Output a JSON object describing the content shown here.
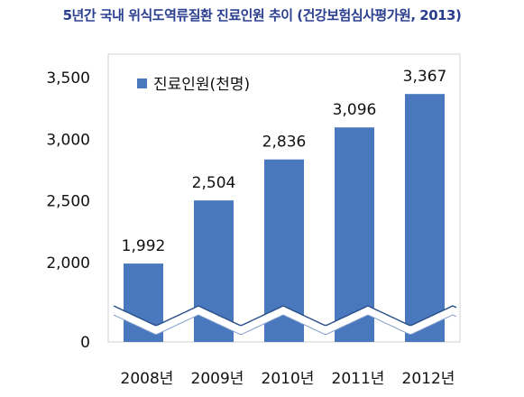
{
  "chart_data": {
    "type": "bar",
    "title": "5년간 국내 위식도역류질환 진료인원 추이 (건강보험심사평가원, 2013)",
    "categories": [
      "2008년",
      "2009년",
      "2010년",
      "2011년",
      "2012년"
    ],
    "series": [
      {
        "name": "진료인원(천명)",
        "values": [
          1992,
          2504,
          2836,
          3096,
          3367
        ],
        "color": "#4a78bf"
      }
    ],
    "data_labels": [
      "1,992",
      "2,504",
      "2,836",
      "3,096",
      "3,367"
    ],
    "yticks": [
      {
        "value": 0,
        "label": "0"
      },
      {
        "value": 2000,
        "label": "2,000"
      },
      {
        "value": 2500,
        "label": "2,500"
      },
      {
        "value": 3000,
        "label": "3,000"
      },
      {
        "value": 3500,
        "label": "3,500"
      }
    ],
    "ylim": [
      0,
      3500
    ],
    "axis_break": true,
    "legend_position": "top-left",
    "grid": false
  }
}
